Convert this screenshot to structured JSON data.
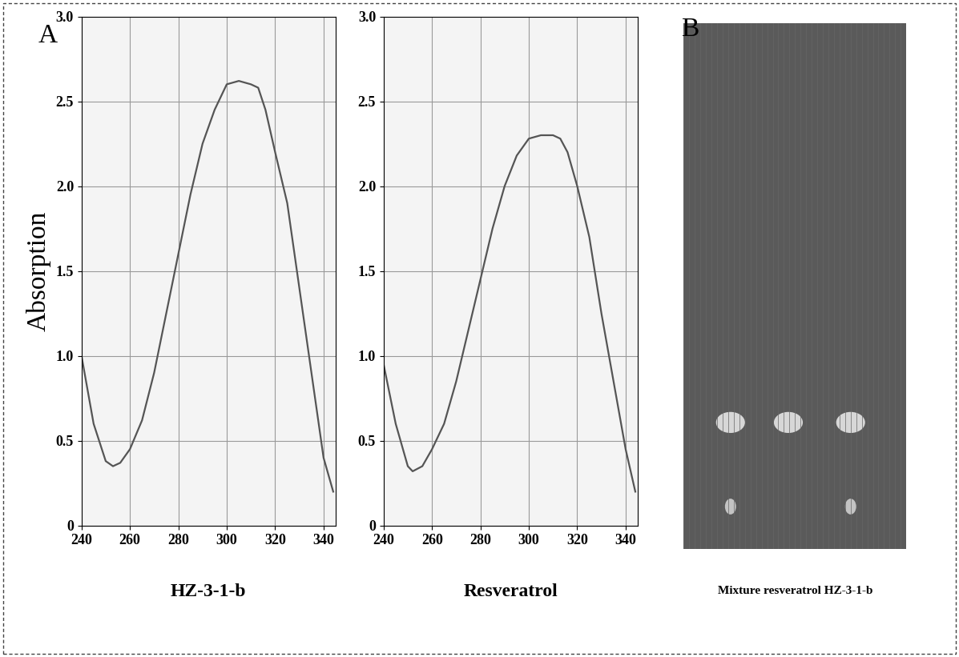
{
  "chart_data": [
    {
      "type": "line",
      "panel": "A",
      "title": "HZ-3-1-b",
      "y_label": "Absorption",
      "x": [
        240,
        245,
        250,
        253,
        256,
        260,
        265,
        270,
        275,
        280,
        285,
        290,
        295,
        300,
        305,
        310,
        313,
        316,
        320,
        325,
        330,
        335,
        340,
        344
      ],
      "values": [
        1.0,
        0.6,
        0.38,
        0.35,
        0.37,
        0.45,
        0.62,
        0.9,
        1.25,
        1.6,
        1.95,
        2.25,
        2.45,
        2.6,
        2.62,
        2.6,
        2.58,
        2.45,
        2.2,
        1.9,
        1.4,
        0.9,
        0.4,
        0.2
      ],
      "color": "#555555",
      "grid": true,
      "xlim": [
        240,
        345
      ],
      "xticks": [
        240,
        260,
        280,
        300,
        320,
        340
      ],
      "ylim": [
        0,
        3.0
      ],
      "yticks": [
        0,
        0.5,
        {
          "value": 1.0,
          "label": "1.0"
        },
        1.5,
        {
          "value": 2.0,
          "label": "2.0"
        },
        2.5,
        {
          "value": 3.0,
          "label": "3.0"
        }
      ]
    },
    {
      "type": "line",
      "title": "Resveratrol",
      "x": [
        240,
        245,
        250,
        252,
        256,
        260,
        265,
        270,
        275,
        280,
        285,
        290,
        295,
        300,
        305,
        310,
        313,
        316,
        320,
        325,
        330,
        335,
        340,
        344
      ],
      "values": [
        0.95,
        0.6,
        0.35,
        0.32,
        0.35,
        0.45,
        0.6,
        0.85,
        1.15,
        1.45,
        1.75,
        2.0,
        2.18,
        2.28,
        2.3,
        2.3,
        2.28,
        2.2,
        2.0,
        1.7,
        1.25,
        0.85,
        0.45,
        0.2
      ],
      "color": "#555555",
      "grid": true,
      "xlim": [
        240,
        345
      ],
      "xticks": [
        240,
        260,
        280,
        300,
        320,
        340
      ],
      "ylim": [
        0,
        3.0
      ],
      "yticks": [
        0,
        0.5,
        {
          "value": 1.0,
          "label": "1.0"
        },
        1.5,
        {
          "value": 2.0,
          "label": "2.0"
        },
        2.5,
        {
          "value": 3.0,
          "label": "3.0"
        }
      ]
    }
  ],
  "image_panel": {
    "panel": "B",
    "caption": "Mixture resveratrol HZ-3-1-b"
  }
}
